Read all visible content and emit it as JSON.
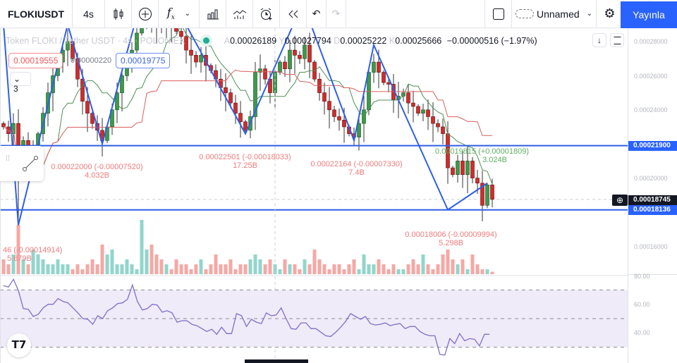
{
  "toolbar": {
    "symbol": "FLOKIUSDT",
    "interval": "4s",
    "layout_name": "Unnamed",
    "publish": "Yayınla"
  },
  "legend": {
    "title": "Token FLOKI / Tether USDT · 4s · POLONIEX",
    "o_label": "A",
    "o": "0.00026189",
    "h_label": "Y",
    "h": "0.00027794",
    "l_label": "D",
    "l": "0.00025222",
    "c_label": "K",
    "c": "0.00025666",
    "change": "−0.00000516 (−1.97%)"
  },
  "price_boxes": {
    "sell": "0.00019555",
    "spread": "0.00000220",
    "buy": "0.00019775",
    "collapsed_count": "3"
  },
  "price_axis": {
    "ticks": [
      "0.00028000",
      "0.00026000",
      "0.00024000",
      "0.00020000",
      "0.00016000"
    ],
    "tick_values": [
      0.00028,
      0.00026,
      0.00024,
      0.0002,
      0.00016
    ],
    "line_upper": "0.00021900",
    "current": "0.00018745",
    "line_lower": "0.00018136"
  },
  "rsi_axis": {
    "ticks": [
      "80.00",
      "60.00",
      "40.00"
    ]
  },
  "annotations": [
    {
      "price": "0.00022000 (-0.00007520)",
      "volume": "4.032B"
    },
    {
      "price": "0.00022501 (-0.00018033)",
      "volume": "17.25B"
    },
    {
      "price": "0.00022164 (-0.00007330)",
      "volume": "7.4B"
    },
    {
      "price": "0.00019815 (+0.00001809)",
      "volume": "3.024B"
    },
    {
      "price": "0.00018006 (-0.00009994)",
      "volume": "5.298B"
    },
    {
      "price": "46 (-0.00014914)",
      "volume": "5.679B"
    }
  ],
  "colors": {
    "up": "#3b9a49",
    "down": "#d12b2b",
    "vol_up": "#92d5cb",
    "vol_down": "#f5a8a5",
    "zigzag": "#2f5fe8",
    "accent": "#2962ff",
    "rsi": "#7e6fc9",
    "conv": "#4f8f57",
    "base": "#d9605c"
  },
  "chart_data": {
    "type": "candlestick",
    "closes": [
      0.00023,
      0.000226,
      0.000232,
      0.000215,
      0.000222,
      0.00021,
      0.000215,
      0.000226,
      0.000238,
      0.00025,
      0.00026,
      0.000268,
      0.000275,
      0.00028,
      0.00027,
      0.000258,
      0.000245,
      0.000238,
      0.000232,
      0.000228,
      0.000222,
      0.00023,
      0.00024,
      0.00025,
      0.00026,
      0.000268,
      0.000275,
      0.000285,
      0.000292,
      0.000295,
      0.000293,
      0.00029,
      0.000288,
      0.000291,
      0.000289,
      0.000286,
      0.000283,
      0.000275,
      0.000272,
      0.000268,
      0.000272,
      0.000266,
      0.000263,
      0.000258,
      0.000253,
      0.00025,
      0.000244,
      0.000238,
      0.000233,
      0.000228,
      0.000236,
      0.000262,
      0.000264,
      0.000258,
      0.00025,
      0.000262,
      0.000268,
      0.000264,
      0.000275,
      0.000272,
      0.00027,
      0.000278,
      0.000268,
      0.000258,
      0.00025,
      0.000245,
      0.00024,
      0.000236,
      0.000234,
      0.00023,
      0.000226,
      0.000224,
      0.000232,
      0.00024,
      0.000262,
      0.000268,
      0.000262,
      0.000256,
      0.000255,
      0.000246,
      0.000248,
      0.00025,
      0.000244,
      0.000242,
      0.000238,
      0.00024,
      0.000236,
      0.000232,
      0.00023,
      0.000226,
      0.000206,
      0.000202,
      0.00021,
      0.000202,
      0.00021,
      0.0002,
      0.000197,
      0.000184,
      0.000196,
      0.0001875
    ],
    "spike_low": {
      "index": 3,
      "low": 0.0001724
    },
    "volumes": [
      3,
      2,
      4,
      10,
      3,
      2,
      5,
      4,
      3,
      2,
      2,
      3,
      2,
      2,
      1,
      2,
      1,
      2,
      3,
      2,
      6,
      4,
      5,
      2,
      2,
      3,
      2,
      1,
      11,
      5,
      6,
      4,
      3,
      2,
      1,
      3,
      2,
      2,
      1,
      2,
      3,
      1,
      2,
      4,
      2,
      2,
      3,
      1,
      2,
      2,
      3,
      4,
      3,
      2,
      3,
      2,
      1,
      3,
      2,
      2,
      1,
      3,
      2,
      5,
      3,
      2,
      1,
      2,
      2,
      1,
      2,
      3,
      1,
      4,
      2,
      2,
      3,
      2,
      1,
      2,
      1,
      1,
      2,
      3,
      2,
      4,
      2,
      1,
      2,
      4,
      5,
      3,
      2,
      3,
      1,
      4,
      2,
      1,
      1,
      0.5
    ],
    "zigzag": [
      [
        0,
        0.00029
      ],
      [
        3,
        0.0001724
      ],
      [
        13,
        0.00029
      ],
      [
        20,
        0.00022
      ],
      [
        27,
        0.000295
      ],
      [
        36,
        0.000295
      ],
      [
        49,
        0.000226
      ],
      [
        59,
        0.000292
      ],
      [
        62,
        0.000292
      ],
      [
        71,
        0.000222
      ],
      [
        75,
        0.000278
      ],
      [
        90,
        0.0001814
      ],
      [
        98,
        0.000197
      ]
    ],
    "hlines": [
      0.000219,
      0.00018136
    ],
    "current_price": 0.00018745,
    "rsi": {
      "upper": 70,
      "middle": 50,
      "lower": 30,
      "ylim": [
        20,
        90
      ],
      "values": [
        73,
        72,
        77.5,
        69.5,
        57,
        56.5,
        51.5,
        53,
        57.5,
        60,
        60,
        64,
        62,
        61,
        57.5,
        54,
        50,
        49.5,
        46,
        52,
        50,
        55.5,
        57.5,
        60.5,
        61,
        63.5,
        73.5,
        62,
        56,
        57,
        60,
        59.5,
        54.5,
        55.5,
        54,
        47.5,
        48.5,
        48.5,
        46,
        45,
        43,
        41,
        42.5,
        39,
        44,
        39.5,
        39.5,
        53.5,
        52,
        44.5,
        49.5,
        47.5,
        46.5,
        54,
        52,
        52.5,
        57.5,
        50,
        43,
        42.5,
        47,
        47,
        43,
        43,
        40.5,
        38,
        37.5,
        40.5,
        44,
        48,
        53.5,
        51.5,
        49.5,
        51.5,
        46.5,
        45.5,
        46,
        47,
        45,
        46,
        46.5,
        43,
        44.5,
        44.5,
        41,
        39,
        38,
        38,
        25,
        24.5,
        36,
        32.5,
        39.5,
        34.5,
        36,
        35.5,
        31,
        39,
        39
      ]
    }
  }
}
